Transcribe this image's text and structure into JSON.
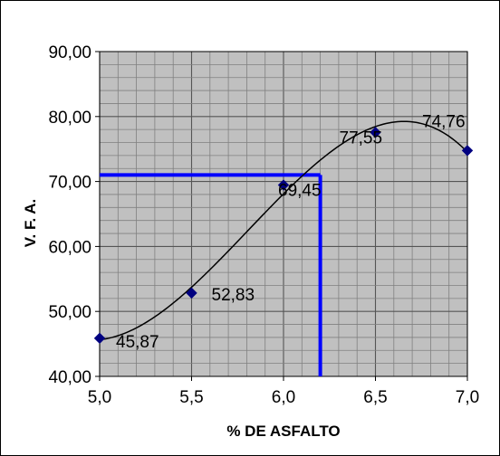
{
  "chart_data": {
    "type": "scatter",
    "xlabel": "% DE ASFALTO",
    "ylabel": "V. F. A.",
    "xlim": [
      5.0,
      7.0
    ],
    "ylim": [
      40.0,
      90.0
    ],
    "x_ticks": [
      5.0,
      5.5,
      6.0,
      6.5,
      7.0
    ],
    "x_tick_labels": [
      "5,0",
      "5,5",
      "6,0",
      "6,5",
      "7,0"
    ],
    "y_ticks": [
      40,
      50,
      60,
      70,
      80,
      90
    ],
    "y_tick_labels": [
      "40,00",
      "50,00",
      "60,00",
      "70,00",
      "80,00",
      "90,00"
    ],
    "grid": true,
    "series": [
      {
        "points": [
          {
            "x": 5.0,
            "y": 45.87,
            "label": "45,87"
          },
          {
            "x": 5.5,
            "y": 52.83,
            "label": "52,83"
          },
          {
            "x": 6.0,
            "y": 69.45,
            "label": "69,45"
          },
          {
            "x": 6.5,
            "y": 77.55,
            "label": "77,55"
          },
          {
            "x": 7.0,
            "y": 74.76,
            "label": "74,76"
          }
        ],
        "marker": "diamond",
        "marker_color": "#000080",
        "trendline": "polynomial",
        "trendline_color": "#000000"
      }
    ],
    "reference_lines": {
      "x": 6.2,
      "y": 71.0,
      "color": "#0000ff"
    },
    "colors": {
      "plot_background": "#c0c0c0",
      "grid": "#808080"
    }
  }
}
